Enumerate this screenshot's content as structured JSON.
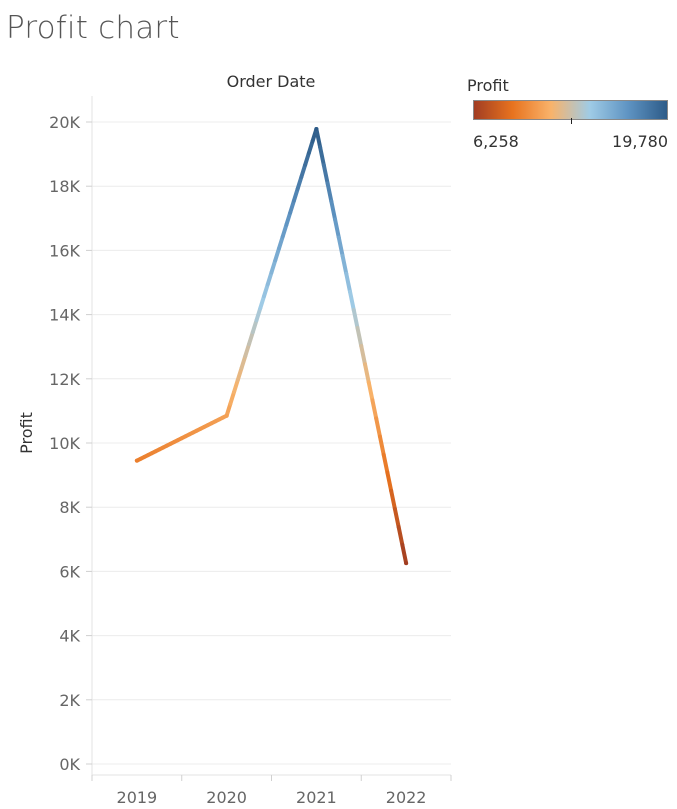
{
  "page": {
    "title": "Profit chart"
  },
  "legend": {
    "title": "Profit",
    "min_label": "6,258",
    "max_label": "19,780",
    "colors": [
      "#a13d22",
      "#e8731f",
      "#f8b36b",
      "#9fcbe6",
      "#5e93c2",
      "#2d5b88"
    ]
  },
  "chart_data": {
    "type": "line",
    "title": "Order Date",
    "xlabel": "",
    "ylabel": "Profit",
    "categories": [
      "2019",
      "2020",
      "2021",
      "2022"
    ],
    "series": [
      {
        "values": [
          9450,
          10850,
          19780,
          6258
        ]
      }
    ],
    "ylim": [
      0,
      20000
    ],
    "yticks": [
      0,
      2000,
      4000,
      6000,
      8000,
      10000,
      12000,
      14000,
      16000,
      18000,
      20000
    ],
    "ytick_labels": [
      "0K",
      "2K",
      "4K",
      "6K",
      "8K",
      "10K",
      "12K",
      "14K",
      "16K",
      "18K",
      "20K"
    ],
    "color_scale": {
      "min": 6258,
      "max": 19780
    },
    "grid": true
  }
}
